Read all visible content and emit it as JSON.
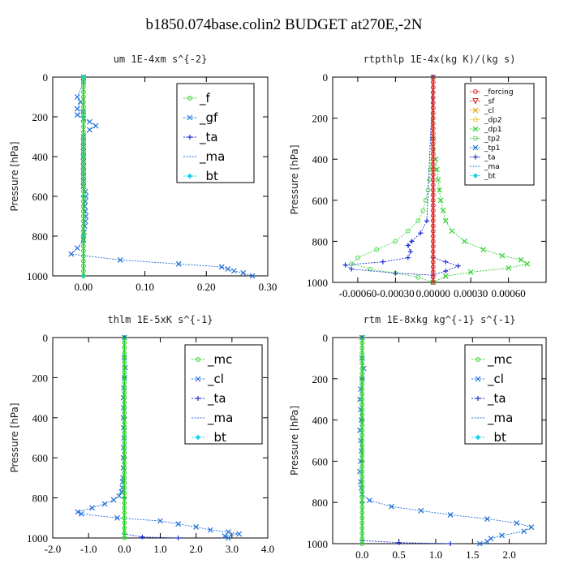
{
  "title": "b1850.074base.colin2  BUDGET at270E,-2N",
  "chart_data": [
    {
      "type": "line",
      "title": "um  1E-4xm s^{-2}",
      "ylabel": "Pressure [hPa]",
      "xlim": [
        -0.05,
        0.3
      ],
      "ylim": [
        1000,
        0
      ],
      "xticks": [
        0.0,
        0.1,
        0.2,
        0.3
      ],
      "xticklabels": [
        "0.00",
        "0.10",
        "0.20",
        "0.30"
      ],
      "yticks": [
        0,
        200,
        400,
        600,
        800,
        1000
      ],
      "legend": [
        "_f",
        "_gf",
        "_ta",
        "_ma",
        "_bt"
      ],
      "series": [
        {
          "name": "_gf",
          "color": "#1e6fd9",
          "marker": "x",
          "x": [
            0.0,
            0.0,
            -0.01,
            -0.005,
            -0.01,
            0.0,
            -0.01,
            0.0,
            0.01,
            0.02,
            0.01,
            0.0,
            0.0,
            0.0,
            0.0,
            0.0,
            0.0,
            0.0,
            0.0,
            0.0,
            0.0,
            0.0,
            0.003,
            0.004,
            0.003,
            0.002,
            0.003,
            0.004,
            0.003,
            0.002,
            0.001,
            0.0,
            -0.01,
            -0.02,
            0.06,
            0.155,
            0.225,
            0.235,
            0.245,
            0.26,
            0.275
          ],
          "y": [
            0,
            25,
            100,
            125,
            160,
            175,
            190,
            210,
            225,
            245,
            265,
            300,
            325,
            350,
            375,
            400,
            425,
            450,
            475,
            500,
            525,
            550,
            575,
            600,
            625,
            650,
            675,
            700,
            725,
            750,
            780,
            820,
            860,
            890,
            920,
            940,
            955,
            965,
            975,
            985,
            1000
          ]
        },
        {
          "name": "_ta",
          "color": "#1a2fd6",
          "marker": "+",
          "x": [
            0.0,
            0.0,
            0.0,
            0.0,
            0.0,
            0.0
          ],
          "y": [
            0,
            200,
            400,
            600,
            800,
            1000
          ]
        },
        {
          "name": "_bt",
          "color": "#19d3e8",
          "marker": "diamond",
          "x": [
            0.0,
            0.0,
            0.0,
            0.0,
            0.0,
            0.0
          ],
          "y": [
            0,
            200,
            400,
            600,
            800,
            1000
          ]
        },
        {
          "name": "_f",
          "color": "#2fd12f",
          "marker": "o",
          "x": [
            0.0,
            0.0,
            0.0,
            0.0,
            0.0,
            0.0,
            0.0,
            0.0,
            0.0,
            0.0,
            0.0,
            0.0,
            0.0,
            0.0,
            0.0,
            0.0,
            0.0,
            0.0,
            0.0,
            0.0,
            0.0,
            0.0,
            0.0,
            0.0,
            0.0,
            0.0,
            0.0,
            0.0,
            0.0,
            0.0,
            0.0,
            0.0,
            0.0,
            0.0,
            0.0,
            0.0,
            0.0,
            0.0,
            0.0,
            0.0,
            0.0
          ],
          "y": [
            0,
            25,
            50,
            75,
            100,
            125,
            150,
            175,
            200,
            225,
            250,
            275,
            300,
            325,
            350,
            375,
            400,
            425,
            450,
            475,
            500,
            525,
            550,
            575,
            600,
            625,
            650,
            675,
            700,
            725,
            750,
            775,
            800,
            825,
            850,
            875,
            900,
            925,
            950,
            975,
            1000
          ]
        }
      ]
    },
    {
      "type": "line",
      "title": "rtpthlp  1E-4x(kg K)/(kg s)",
      "ylabel": "Pressure [hPa]",
      "xlim": [
        -0.0008,
        0.0009
      ],
      "ylim": [
        1000,
        0
      ],
      "xticks": [
        -0.0006,
        -0.0003,
        0.0,
        0.0003,
        0.0006
      ],
      "xticklabels": [
        "-0.00060",
        "-0.00030",
        "0.00000",
        "0.00030",
        "0.00060"
      ],
      "yticks": [
        0,
        200,
        400,
        600,
        800,
        1000
      ],
      "legend": [
        "_forcing",
        "_sf",
        "_cl",
        "_dp2",
        "_dp1",
        "_tp2",
        "_tp1",
        "_ta",
        "_ma",
        "_bt"
      ],
      "series": [
        {
          "name": "_dp1",
          "color": "#2fd12f",
          "marker": "x",
          "x": [
            0.0,
            0.0,
            2e-05,
            3e-05,
            4e-05,
            5e-05,
            6e-05,
            8e-05,
            0.0001,
            0.00015,
            0.00025,
            0.0004,
            0.00055,
            0.0007,
            0.00075,
            0.0006,
            0.0003,
            0.0001,
            0.0
          ],
          "y": [
            0,
            300,
            400,
            450,
            500,
            550,
            600,
            650,
            700,
            750,
            800,
            840,
            870,
            890,
            910,
            930,
            950,
            970,
            1000
          ]
        },
        {
          "name": "_tp2",
          "color": "#4fd84f",
          "marker": "o",
          "x": [
            0.0,
            -2e-05,
            -3e-05,
            -4e-05,
            -6e-05,
            -8e-05,
            -0.00012,
            -0.0002,
            -0.0003,
            -0.00045,
            -0.0006,
            -0.00065,
            -0.0005,
            -0.0003,
            -0.00012,
            0.0
          ],
          "y": [
            0,
            450,
            500,
            550,
            600,
            650,
            700,
            750,
            800,
            840,
            880,
            910,
            935,
            955,
            975,
            1000
          ]
        },
        {
          "name": "_ta",
          "color": "#1a2fd6",
          "marker": "+",
          "x": [
            0.0,
            -5e-05,
            -0.0001,
            -0.00017,
            -0.0002,
            -0.00018,
            -0.0002,
            -0.0004,
            -0.0007,
            -0.00065,
            -0.0003,
            0.0,
            0.0001,
            0.0002,
            0.0001,
            0.0
          ],
          "y": [
            0,
            700,
            760,
            800,
            820,
            850,
            880,
            900,
            915,
            935,
            955,
            965,
            945,
            920,
            900,
            880
          ]
        },
        {
          "name": "_forcing",
          "color": "#e02020",
          "marker": "o",
          "x": [
            0.0,
            0.0,
            0.0,
            0.0,
            0.0,
            0.0,
            0.0,
            0.0,
            0.0,
            0.0,
            0.0,
            0.0,
            0.0,
            0.0,
            0.0,
            0.0,
            0.0,
            0.0,
            0.0,
            0.0,
            0.0,
            0.0,
            0.0,
            0.0,
            0.0,
            0.0,
            0.0,
            0.0,
            0.0,
            0.0,
            0.0,
            0.0,
            0.0,
            0.0,
            0.0,
            0.0,
            0.0,
            0.0,
            0.0,
            0.0,
            0.0
          ],
          "y": [
            0,
            25,
            50,
            75,
            100,
            125,
            150,
            175,
            200,
            225,
            250,
            275,
            300,
            325,
            350,
            375,
            400,
            425,
            450,
            475,
            500,
            525,
            550,
            575,
            600,
            625,
            650,
            675,
            700,
            725,
            750,
            775,
            800,
            825,
            850,
            875,
            900,
            925,
            950,
            975,
            1000
          ]
        }
      ]
    },
    {
      "type": "line",
      "title": "thlm  1E-5xK s^{-1}",
      "ylabel": "Pressure [hPa]",
      "xlim": [
        -2.0,
        4.0
      ],
      "ylim": [
        1000,
        0
      ],
      "xticks": [
        -2.0,
        -1.0,
        0.0,
        1.0,
        2.0,
        3.0,
        4.0
      ],
      "xticklabels": [
        "-2.0",
        "-1.0",
        "0.0",
        "1.0",
        "2.0",
        "3.0",
        "4.0"
      ],
      "yticks": [
        0,
        200,
        400,
        600,
        800,
        1000
      ],
      "legend": [
        "_mc",
        "_cl",
        "_ta",
        "_ma",
        "_bt"
      ],
      "series": [
        {
          "name": "_cl",
          "color": "#1e6fd9",
          "marker": "x",
          "x": [
            0.0,
            0.0,
            0.02,
            0.0,
            -0.02,
            -0.03,
            -0.02,
            -0.03,
            -0.02,
            -0.01,
            -0.02,
            -0.03,
            -0.03,
            -0.04,
            -0.05,
            -0.06,
            -0.08,
            -0.15,
            -0.3,
            -0.55,
            -0.9,
            -1.3,
            -1.2,
            -0.2,
            1.0,
            1.5,
            2.0,
            2.4,
            2.9,
            3.2,
            2.8,
            2.9
          ],
          "y": [
            0,
            100,
            150,
            200,
            250,
            300,
            350,
            400,
            450,
            500,
            550,
            600,
            650,
            700,
            720,
            750,
            770,
            790,
            810,
            830,
            850,
            870,
            880,
            900,
            915,
            930,
            945,
            960,
            970,
            980,
            990,
            1000
          ]
        },
        {
          "name": "_ta",
          "color": "#1a2fd6",
          "marker": "+",
          "x": [
            0.0,
            0.0,
            0.0,
            0.0,
            0.0,
            0.0,
            0.5,
            1.5
          ],
          "y": [
            0,
            200,
            400,
            600,
            800,
            980,
            995,
            1000
          ]
        },
        {
          "name": "_mc",
          "color": "#2fd12f",
          "marker": "o",
          "x": [
            0.0,
            0.0,
            0.0,
            0.0,
            0.0,
            0.0,
            0.0,
            0.0,
            0.0,
            0.0,
            0.0,
            0.0,
            0.0,
            0.0,
            0.0,
            0.0,
            0.0,
            0.0,
            0.0,
            0.0,
            0.0,
            0.0,
            0.0,
            0.0,
            0.0,
            0.0,
            0.0,
            0.0,
            0.0,
            0.0,
            0.0,
            0.0,
            0.0,
            0.0,
            0.0,
            0.0,
            0.0,
            0.0,
            0.0,
            0.0,
            0.0
          ],
          "y": [
            0,
            25,
            50,
            75,
            100,
            125,
            150,
            175,
            200,
            225,
            250,
            275,
            300,
            325,
            350,
            375,
            400,
            425,
            450,
            475,
            500,
            525,
            550,
            575,
            600,
            625,
            650,
            675,
            700,
            725,
            750,
            775,
            800,
            825,
            850,
            875,
            900,
            925,
            950,
            975,
            1000
          ]
        }
      ]
    },
    {
      "type": "line",
      "title": "rtm  1E-8xkg kg^{-1} s^{-1}",
      "ylabel": "Pressure [hPa]",
      "xlim": [
        -0.4,
        2.5
      ],
      "ylim": [
        1000,
        0
      ],
      "xticks": [
        0.0,
        0.5,
        1.0,
        1.5,
        2.0
      ],
      "xticklabels": [
        "0.0",
        "0.5",
        "1.0",
        "1.5",
        "2.0"
      ],
      "yticks": [
        0,
        200,
        400,
        600,
        800,
        1000
      ],
      "legend": [
        "_mc",
        "_cl",
        "_ta",
        "_ma",
        "_bt"
      ],
      "series": [
        {
          "name": "_cl",
          "color": "#1e6fd9",
          "marker": "x",
          "x": [
            0.0,
            0.0,
            0.02,
            0.0,
            -0.02,
            -0.03,
            -0.02,
            -0.01,
            -0.03,
            -0.02,
            -0.01,
            -0.02,
            -0.03,
            -0.02,
            -0.01,
            0.0,
            0.1,
            0.4,
            0.8,
            1.2,
            1.7,
            2.1,
            2.3,
            2.2,
            1.9,
            1.75,
            1.7,
            1.6
          ],
          "y": [
            0,
            100,
            150,
            200,
            250,
            300,
            350,
            400,
            450,
            500,
            550,
            600,
            650,
            700,
            730,
            760,
            790,
            820,
            840,
            860,
            880,
            900,
            920,
            940,
            960,
            975,
            990,
            1000
          ]
        },
        {
          "name": "_ta",
          "color": "#1a2fd6",
          "marker": "+",
          "x": [
            0.0,
            0.0,
            0.0,
            0.0,
            0.0,
            0.0,
            0.5,
            1.2
          ],
          "y": [
            0,
            200,
            400,
            600,
            800,
            985,
            995,
            1000
          ]
        },
        {
          "name": "_mc",
          "color": "#2fd12f",
          "marker": "o",
          "x": [
            0.0,
            0.0,
            0.0,
            0.0,
            0.0,
            0.0,
            0.0,
            0.0,
            0.0,
            0.0,
            0.0,
            0.0,
            0.0,
            0.0,
            0.0,
            0.0,
            0.0,
            0.0,
            0.0,
            0.0,
            0.0,
            0.0,
            0.0,
            0.0,
            0.0,
            0.0,
            0.0,
            0.0,
            0.0,
            0.0,
            0.0,
            0.0,
            0.0,
            0.0,
            0.0,
            0.0,
            0.0,
            0.0,
            0.0,
            0.0,
            0.0
          ],
          "y": [
            0,
            25,
            50,
            75,
            100,
            125,
            150,
            175,
            200,
            225,
            250,
            275,
            300,
            325,
            350,
            375,
            400,
            425,
            450,
            475,
            500,
            525,
            550,
            575,
            600,
            625,
            650,
            675,
            700,
            725,
            750,
            775,
            800,
            825,
            850,
            875,
            900,
            925,
            950,
            975,
            1000
          ]
        }
      ]
    }
  ],
  "legend_styles": {
    "_f": {
      "color": "#2fd12f",
      "marker": "o"
    },
    "_gf": {
      "color": "#1e6fd9",
      "marker": "x"
    },
    "_ta": {
      "color": "#1a2fd6",
      "marker": "+"
    },
    "_ma": {
      "color": "#1e6fd9",
      "marker": "none"
    },
    "_bt": {
      "color": "#19d3e8",
      "marker": "diamond"
    },
    "_mc": {
      "color": "#2fd12f",
      "marker": "o"
    },
    "_cl": {
      "color": "#1e6fd9",
      "marker": "x"
    },
    "_forcing": {
      "color": "#e02020",
      "marker": "o"
    },
    "_sf": {
      "color": "#e02020",
      "marker": "triangle-down"
    },
    "_dp2": {
      "color": "#e8c81a",
      "marker": "o"
    },
    "_dp1": {
      "color": "#2fd12f",
      "marker": "x"
    },
    "_tp2": {
      "color": "#4fd84f",
      "marker": "o"
    },
    "_tp1": {
      "color": "#1e6fd9",
      "marker": "x"
    }
  },
  "legend_overrides": {
    "_cl_in_rtpthlp": "#e8a020"
  }
}
